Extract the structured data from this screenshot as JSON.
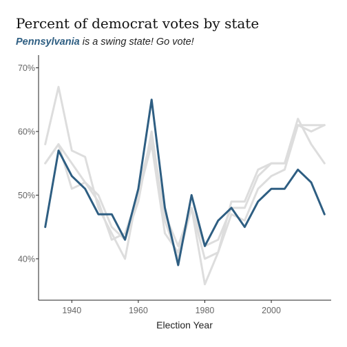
{
  "chart_data": {
    "type": "line",
    "title": "Percent of democrat votes by state",
    "subtitle": {
      "highlight": "Pennsylvania",
      "rest": " is a swing state! Go vote!"
    },
    "xlabel": "Election Year",
    "ylabel": "",
    "xlim": [
      1930,
      2018
    ],
    "ylim": [
      33.5,
      72.0
    ],
    "xticks": [
      1940,
      1960,
      1980,
      2000
    ],
    "xtick_labels": [
      "1940",
      "1960",
      "1980",
      "2000"
    ],
    "yticks": [
      40,
      50,
      60,
      70
    ],
    "ytick_labels": [
      "40%",
      "50%",
      "60%",
      "70%"
    ],
    "grid": false,
    "legend": "none",
    "x": [
      1932,
      1936,
      1940,
      1944,
      1948,
      1952,
      1956,
      1960,
      1964,
      1968,
      1972,
      1976,
      1980,
      1984,
      1988,
      1992,
      1996,
      2000,
      2004,
      2008,
      2012,
      2016
    ],
    "background_series": [
      {
        "color": "#dddddd",
        "values": [
          55,
          58,
          51,
          52,
          49,
          43,
          44,
          50,
          58,
          44,
          41,
          48,
          42,
          43,
          48,
          48,
          53,
          55,
          55,
          62,
          58,
          55
        ]
      },
      {
        "color": "#dddddd",
        "values": [
          58,
          67,
          57,
          56,
          48,
          44,
          40,
          51,
          59,
          47,
          42,
          48,
          36,
          41,
          49,
          49,
          54,
          55,
          55,
          61,
          60,
          61
        ]
      },
      {
        "color": "#dddddd",
        "values": [
          55,
          58,
          55,
          52,
          50,
          45,
          43,
          49,
          60,
          46,
          40,
          48,
          40,
          41,
          47,
          46,
          51,
          53,
          54,
          61,
          61,
          61
        ]
      }
    ],
    "highlight_series": {
      "name": "Pennsylvania",
      "color": "#2e5e82",
      "values": [
        45,
        57,
        53,
        51,
        47,
        47,
        43,
        51,
        65,
        48,
        39,
        50,
        42,
        46,
        48,
        45,
        49,
        51,
        51,
        54,
        52,
        47
      ]
    }
  }
}
